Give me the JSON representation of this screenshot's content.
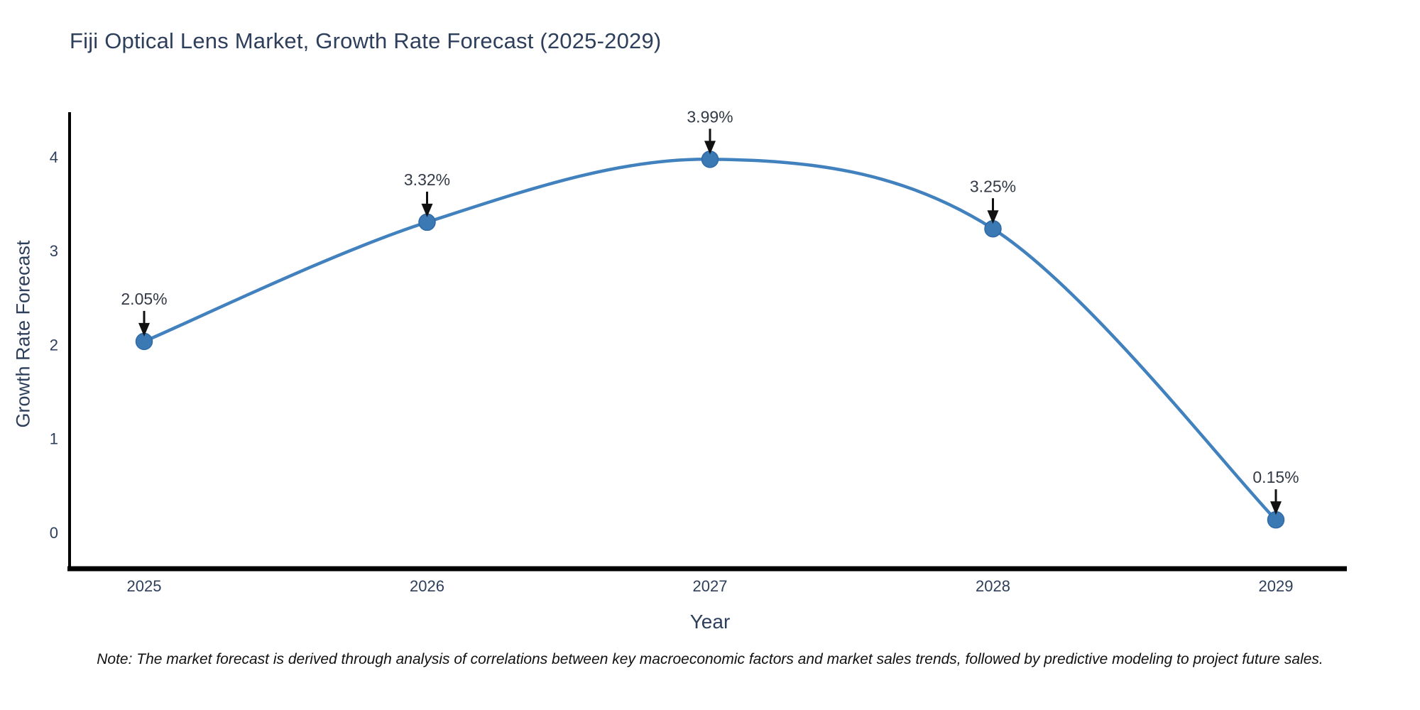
{
  "chart_data": {
    "type": "line",
    "title": "Fiji Optical Lens Market, Growth Rate Forecast (2025-2029)",
    "xlabel": "Year",
    "ylabel": "Growth Rate Forecast",
    "categories": [
      "2025",
      "2026",
      "2027",
      "2028",
      "2029"
    ],
    "series": [
      {
        "name": "Growth Rate Forecast",
        "values": [
          2.05,
          3.32,
          3.99,
          3.25,
          0.15
        ],
        "point_labels": [
          "2.05%",
          "3.32%",
          "3.99%",
          "3.25%",
          "0.15%"
        ]
      }
    ],
    "yticks": [
      0,
      1,
      2,
      3,
      4
    ],
    "ylim": [
      -0.36,
      4.48
    ],
    "grid": false,
    "legend_position": "none",
    "curve": "spline",
    "colors": {
      "line": "#4181bd",
      "marker_fill": "#3b79b5",
      "marker_stroke": "#2f6aa6",
      "axis_line": "#000000",
      "tick_text": "#2e3f5c",
      "annotation_text": "#333a46",
      "arrow": "#111111"
    }
  },
  "note": "Note: The market forecast is derived through analysis of correlations between key macroeconomic factors and market sales trends, followed by predictive modeling to project future sales."
}
